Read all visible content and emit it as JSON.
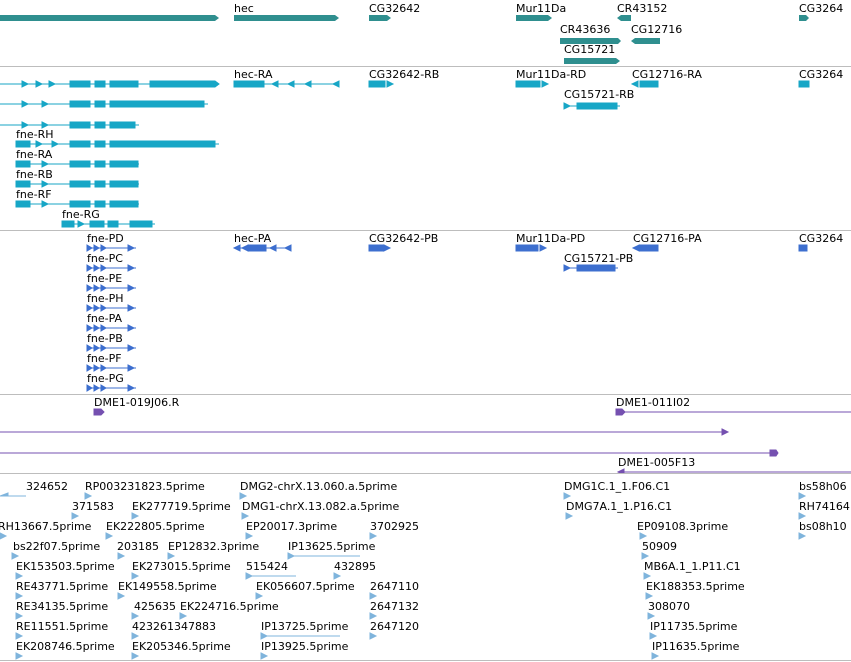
{
  "tracks": {
    "genes": {
      "color": "#2f8f8f",
      "labels": [
        "hec",
        "CG32642",
        "Mur11Da",
        "CR43152",
        "CG3264",
        "CR43636",
        "CG12716",
        "CG15721"
      ]
    },
    "transcripts_a": {
      "color": "#17a6c6",
      "labels": [
        "hec-RA",
        "CG32642-RB",
        "Mur11Da-RD",
        "CG12716-RA",
        "CG3264",
        "CG15721-RB",
        "fne-RH",
        "fne-RA",
        "fne-RB",
        "fne-RF",
        "fne-RG"
      ]
    },
    "transcripts_b": {
      "color": "#3d6fcf",
      "labels": [
        "fne-PD",
        "hec-PA",
        "CG32642-PB",
        "Mur11Da-PD",
        "CG12716-PA",
        "CG3264",
        "CG15721-PB",
        "fne-PC",
        "fne-PE",
        "fne-PH",
        "fne-PA",
        "fne-PB",
        "fne-PF",
        "fne-PG"
      ]
    },
    "clones": {
      "color": "#7550b0",
      "labels": [
        "DME1-019J06.R",
        "DME1-011I02",
        "DME1-005F13"
      ]
    },
    "ests": {
      "color": "#7fb4dc",
      "labels": [
        "324652",
        "RP003231823.5prime",
        "DMG2-chrX.13.060.a.5prime",
        "DMG1C.1_1.F06.C1",
        "bs58h06",
        "371583",
        "EK277719.5prime",
        "DMG1-chrX.13.082.a.5prime",
        "DMG7A.1_1.P16.C1",
        "RH74164",
        "RH13667.5prime",
        "EK222805.5prime",
        "EP20017.3prime",
        "3702925",
        "EP09108.3prime",
        "bs08h10",
        "bs22f07.5prime",
        "203185",
        "EP12832.3prime",
        "IP13625.5prime",
        "50909",
        "EK153503.5prime",
        "EK273015.5prime",
        "515424",
        "432895",
        "MB6A.1_1.P11.C1",
        "RE43771.5prime",
        "EK149558.5prime",
        "EK056607.5prime",
        "2647110",
        "EK188353.5prime",
        "RE34135.5prime",
        "425635",
        "EK224716.5prime",
        "2647132",
        "308070",
        "RE11551.5prime",
        "423261347883",
        "IP13725.5prime",
        "2647120",
        "IP11735.5prime",
        "EK208746.5prime",
        "EK205346.5prime",
        "IP13925.5prime",
        "IP11635.5prime"
      ]
    }
  }
}
